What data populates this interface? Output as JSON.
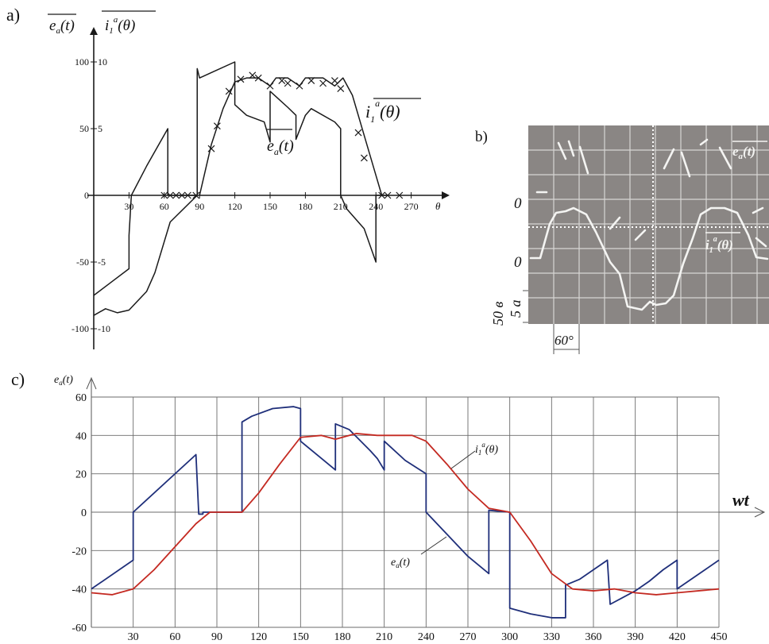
{
  "colors": {
    "ink": "#1a1a1a",
    "blue": "#1f2f7a",
    "red": "#c42a22",
    "grid": "#6b6b6b",
    "scope_bg": "#8a8684",
    "scope_line": "#f4f4f2"
  },
  "chart_data": [
    {
      "panel": "a)",
      "type": "line",
      "ylabel_left": "e_a(t)",
      "ylabel_right": "i_1^a(θ)",
      "xlabel": "θ",
      "x_ticks": [
        30,
        60,
        90,
        120,
        150,
        180,
        210,
        240,
        270
      ],
      "y_left_ticks": [
        "100",
        "50",
        "0",
        "-50",
        "-100"
      ],
      "y_right_ticks": [
        "10",
        "5",
        "-5",
        "-10"
      ],
      "xlim": [
        0,
        280
      ],
      "ylim": [
        -105,
        105
      ],
      "annotations": [
        "e_a(t)",
        "i_1^a(θ)"
      ],
      "series": [
        {
          "name": "e_a(t)",
          "points": [
            [
              0,
              -90
            ],
            [
              10,
              -85
            ],
            [
              20,
              -88
            ],
            [
              30,
              -86
            ],
            [
              45,
              -72
            ],
            [
              52,
              -58
            ],
            [
              65,
              -20
            ],
            [
              88,
              0
            ],
            [
              88,
              95
            ],
            [
              90,
              88
            ],
            [
              100,
              92
            ],
            [
              120,
              100
            ],
            [
              120,
              68
            ],
            [
              130,
              60
            ],
            [
              145,
              55
            ],
            [
              150,
              40
            ],
            [
              150,
              78
            ],
            [
              165,
              66
            ],
            [
              172,
              60
            ],
            [
              172,
              42
            ],
            [
              180,
              60
            ],
            [
              185,
              65
            ],
            [
              205,
              55
            ],
            [
              210,
              50
            ],
            [
              210,
              0
            ],
            [
              210,
              0
            ],
            [
              215,
              -10
            ],
            [
              230,
              -25
            ],
            [
              240,
              -50
            ],
            [
              240,
              0
            ],
            [
              250,
              0
            ]
          ],
          "color": "#1a1a1a"
        },
        {
          "name": "e_a(t) lower",
          "points": [
            [
              0,
              -75
            ],
            [
              15,
              -65
            ],
            [
              30,
              -55
            ],
            [
              30,
              -30
            ],
            [
              32,
              0
            ],
            [
              45,
              22
            ],
            [
              63,
              50
            ],
            [
              63,
              0
            ],
            [
              88,
              0
            ]
          ],
          "color": "#1a1a1a"
        },
        {
          "name": "i_1^a(θ)",
          "points": [
            [
              90,
              0
            ],
            [
              100,
              38
            ],
            [
              110,
              65
            ],
            [
              120,
              85
            ],
            [
              130,
              88
            ],
            [
              140,
              88
            ],
            [
              150,
              82
            ],
            [
              155,
              88
            ],
            [
              165,
              88
            ],
            [
              175,
              82
            ],
            [
              180,
              88
            ],
            [
              195,
              88
            ],
            [
              205,
              82
            ],
            [
              212,
              88
            ],
            [
              220,
              75
            ],
            [
              230,
              45
            ],
            [
              240,
              15
            ],
            [
              245,
              0
            ]
          ],
          "color": "#1a1a1a"
        }
      ],
      "markers": [
        [
          60,
          0
        ],
        [
          65,
          0
        ],
        [
          70,
          0
        ],
        [
          75,
          0
        ],
        [
          80,
          0
        ],
        [
          87,
          0
        ],
        [
          100,
          35
        ],
        [
          105,
          52
        ],
        [
          115,
          78
        ],
        [
          125,
          87
        ],
        [
          135,
          90
        ],
        [
          140,
          88
        ],
        [
          150,
          82
        ],
        [
          160,
          86
        ],
        [
          165,
          84
        ],
        [
          175,
          82
        ],
        [
          185,
          86
        ],
        [
          195,
          84
        ],
        [
          205,
          86
        ],
        [
          210,
          80
        ],
        [
          225,
          47
        ],
        [
          230,
          28
        ],
        [
          245,
          0
        ],
        [
          250,
          0
        ],
        [
          260,
          0
        ]
      ]
    },
    {
      "panel": "b)",
      "type": "line",
      "annotations": [
        "e_a(t)",
        "i_1^a(θ)"
      ],
      "y_axis_labels": [
        "0",
        "0"
      ],
      "scale_labels": [
        "50 в",
        "5 а"
      ],
      "scale_marker": "60°"
    },
    {
      "panel": "c)",
      "type": "line",
      "ylabel": "e_a(t)",
      "xlabel": "wt",
      "xlim": [
        0,
        450
      ],
      "ylim": [
        -60,
        60
      ],
      "x_ticks": [
        30,
        60,
        90,
        120,
        150,
        180,
        210,
        240,
        270,
        300,
        330,
        360,
        390,
        420,
        450
      ],
      "y_ticks": [
        60,
        40,
        20,
        0,
        -20,
        -40,
        -60
      ],
      "grid": true,
      "annotations": [
        "i_1^a(θ)",
        "e_a(t)"
      ],
      "series": [
        {
          "name": "e_a(t)",
          "color": "#1f2f7a",
          "points": [
            [
              0,
              -40
            ],
            [
              30,
              -25
            ],
            [
              30,
              0
            ],
            [
              75,
              30
            ],
            [
              77,
              -1
            ],
            [
              80,
              -1
            ],
            [
              80,
              0
            ],
            [
              108,
              0
            ],
            [
              108,
              47
            ],
            [
              115,
              50
            ],
            [
              130,
              54
            ],
            [
              145,
              55
            ],
            [
              150,
              54
            ],
            [
              150,
              37
            ],
            [
              165,
              28
            ],
            [
              175,
              22
            ],
            [
              175,
              46
            ],
            [
              185,
              43
            ],
            [
              200,
              32
            ],
            [
              205,
              28
            ],
            [
              210,
              22
            ],
            [
              210,
              37
            ],
            [
              225,
              27
            ],
            [
              240,
              20
            ],
            [
              240,
              0
            ],
            [
              270,
              -23
            ],
            [
              285,
              -32
            ],
            [
              285,
              1
            ],
            [
              300,
              0
            ],
            [
              300,
              -50
            ],
            [
              315,
              -53
            ],
            [
              330,
              -55
            ],
            [
              340,
              -55
            ],
            [
              340,
              -38
            ],
            [
              350,
              -35
            ],
            [
              360,
              -30
            ],
            [
              370,
              -25
            ],
            [
              372,
              -48
            ],
            [
              390,
              -41
            ],
            [
              400,
              -36
            ],
            [
              410,
              -30
            ],
            [
              420,
              -25
            ],
            [
              420,
              -40
            ],
            [
              440,
              -30
            ],
            [
              450,
              -25
            ]
          ]
        },
        {
          "name": "i_1^a(θ)",
          "color": "#c42a22",
          "points": [
            [
              0,
              -42
            ],
            [
              15,
              -43
            ],
            [
              30,
              -40
            ],
            [
              45,
              -30
            ],
            [
              60,
              -18
            ],
            [
              75,
              -6
            ],
            [
              85,
              0
            ],
            [
              108,
              0
            ],
            [
              120,
              10
            ],
            [
              135,
              25
            ],
            [
              150,
              39
            ],
            [
              165,
              40
            ],
            [
              175,
              38
            ],
            [
              190,
              41
            ],
            [
              205,
              40
            ],
            [
              215,
              40
            ],
            [
              230,
              40
            ],
            [
              240,
              37
            ],
            [
              255,
              25
            ],
            [
              270,
              12
            ],
            [
              285,
              2
            ],
            [
              300,
              0
            ],
            [
              315,
              -15
            ],
            [
              330,
              -32
            ],
            [
              345,
              -40
            ],
            [
              360,
              -41
            ],
            [
              375,
              -40
            ],
            [
              390,
              -42
            ],
            [
              405,
              -43
            ],
            [
              420,
              -42
            ],
            [
              435,
              -41
            ],
            [
              450,
              -40
            ]
          ]
        }
      ]
    }
  ]
}
